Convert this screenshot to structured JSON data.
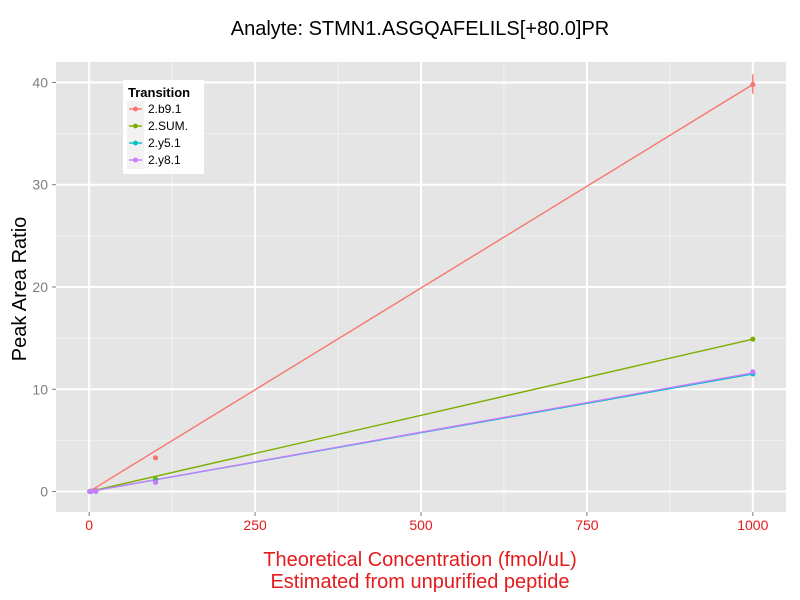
{
  "chart_data": {
    "type": "line",
    "title": "Analyte: STMN1.ASGQAFELILS[+80.0]PR",
    "xlabel_line1": "Theoretical Concentration (fmol/uL)",
    "xlabel_line2": "Estimated from unpurified peptide",
    "ylabel": "Peak Area Ratio",
    "xlim": [
      -50,
      1050
    ],
    "ylim": [
      -2.0,
      42.0
    ],
    "x_ticks": [
      0,
      250,
      500,
      750,
      1000
    ],
    "y_ticks": [
      0,
      10,
      20,
      30,
      40
    ],
    "grid": true,
    "legend": {
      "title": "Transition",
      "placement": "top-left"
    },
    "series": [
      {
        "name": "2.b9.1",
        "color": "#F8766D",
        "x": [
          1,
          3,
          10,
          100,
          1000
        ],
        "y": [
          0.01,
          0.04,
          0.1,
          3.3,
          39.8
        ],
        "fit": [
          [
            0,
            0.0
          ],
          [
            1000,
            39.8
          ]
        ],
        "error_bars": [
          {
            "x": 1000,
            "low": 38.9,
            "high": 40.8
          }
        ]
      },
      {
        "name": "2.SUM.",
        "color": "#7CAE00",
        "x": [
          1,
          3,
          10,
          100,
          1000
        ],
        "y": [
          0.01,
          0.02,
          0.05,
          1.2,
          14.9
        ],
        "fit": [
          [
            0,
            0.0
          ],
          [
            1000,
            14.9
          ]
        ]
      },
      {
        "name": "2.y5.1",
        "color": "#00BFC4",
        "x": [
          1,
          3,
          10,
          100,
          1000
        ],
        "y": [
          0.0,
          0.01,
          0.03,
          1.0,
          11.5
        ],
        "fit": [
          [
            0,
            0.0
          ],
          [
            1000,
            11.5
          ]
        ]
      },
      {
        "name": "2.y8.1",
        "color": "#C77CFF",
        "x": [
          1,
          3,
          10,
          100,
          1000
        ],
        "y": [
          0.0,
          0.01,
          0.03,
          0.9,
          11.7
        ],
        "fit": [
          [
            0,
            0.0
          ],
          [
            1000,
            11.6
          ]
        ]
      }
    ],
    "colors": {
      "panel": "#E5E5E5",
      "grid": "#FFFFFF",
      "x_text": "#E41A1C",
      "y_tick_text": "#7F7F7F"
    }
  }
}
